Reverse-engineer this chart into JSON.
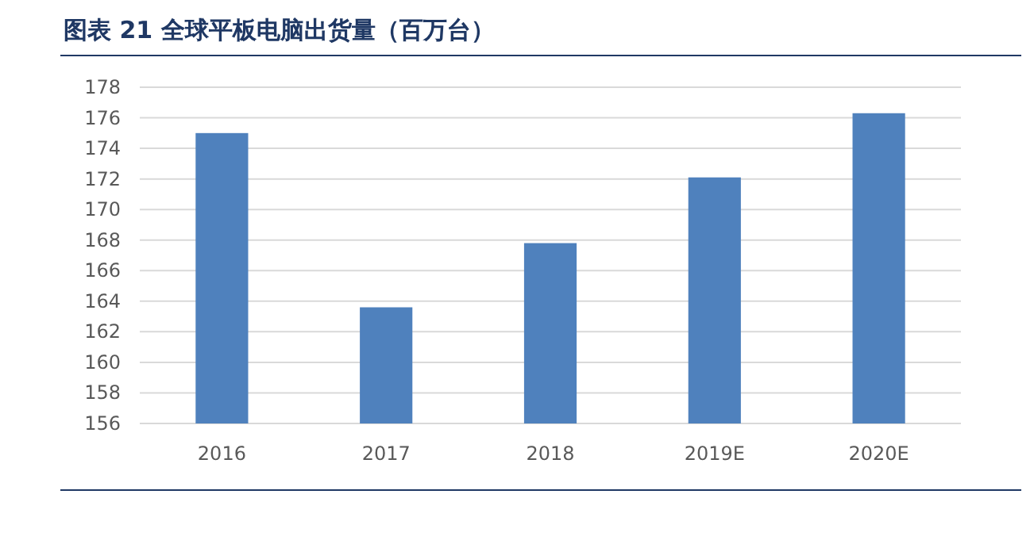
{
  "chart_data": {
    "type": "bar",
    "title": "图表 21 全球平板电脑出货量（百万台）",
    "categories": [
      "2016",
      "2017",
      "2018",
      "2019E",
      "2020E"
    ],
    "values": [
      175.0,
      163.6,
      167.8,
      172.1,
      176.3
    ],
    "color": "#4f81bd",
    "ylim": [
      156,
      178
    ],
    "yticks": [
      156,
      158,
      160,
      162,
      164,
      166,
      168,
      170,
      172,
      174,
      176,
      178
    ],
    "grid": "y"
  }
}
